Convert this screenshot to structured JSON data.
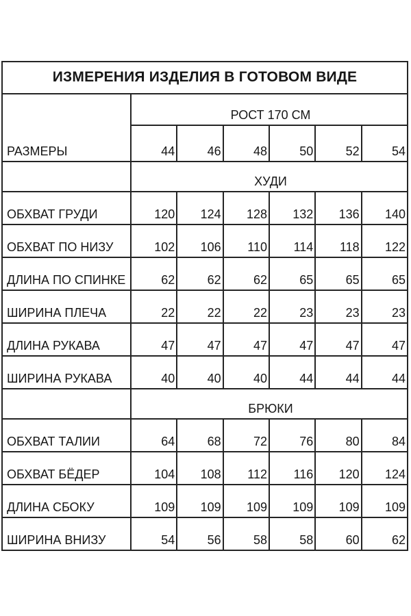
{
  "style": {
    "background": "#ffffff",
    "text_color": "#161616",
    "border_color": "#242424"
  },
  "chart_data": {
    "type": "table",
    "title": "ИЗМЕРЕНИЯ ИЗДЕЛИЯ В ГОТОВОМ ВИДЕ",
    "height_header": "РОСТ 170 СМ",
    "sizes_label": "РАЗМЕРЫ",
    "sizes": [
      "44",
      "46",
      "48",
      "50",
      "52",
      "54"
    ],
    "sections": [
      {
        "name": "ХУДИ",
        "rows": [
          {
            "label": "ОБХВАТ ГРУДИ",
            "values": [
              "120",
              "124",
              "128",
              "132",
              "136",
              "140"
            ]
          },
          {
            "label": "ОБХВАТ ПО НИЗУ",
            "values": [
              "102",
              "106",
              "110",
              "114",
              "118",
              "122"
            ]
          },
          {
            "label": "ДЛИНА ПО СПИНКЕ",
            "values": [
              "62",
              "62",
              "62",
              "65",
              "65",
              "65"
            ]
          },
          {
            "label": "ШИРИНА ПЛЕЧА",
            "values": [
              "22",
              "22",
              "22",
              "23",
              "23",
              "23"
            ]
          },
          {
            "label": "ДЛИНА РУКАВА",
            "values": [
              "47",
              "47",
              "47",
              "47",
              "47",
              "47"
            ]
          },
          {
            "label": "ШИРИНА РУКАВА",
            "values": [
              "40",
              "40",
              "40",
              "44",
              "44",
              "44"
            ]
          }
        ]
      },
      {
        "name": "БРЮКИ",
        "rows": [
          {
            "label": "ОБХВАТ ТАЛИИ",
            "values": [
              "64",
              "68",
              "72",
              "76",
              "80",
              "84"
            ]
          },
          {
            "label": "ОБХВАТ БЁДЕР",
            "values": [
              "104",
              "108",
              "112",
              "116",
              "120",
              "124"
            ]
          },
          {
            "label": "ДЛИНА СБОКУ",
            "values": [
              "109",
              "109",
              "109",
              "109",
              "109",
              "109"
            ]
          },
          {
            "label": "ШИРИНА ВНИЗУ",
            "values": [
              "54",
              "56",
              "58",
              "58",
              "60",
              "62"
            ]
          }
        ]
      }
    ]
  }
}
